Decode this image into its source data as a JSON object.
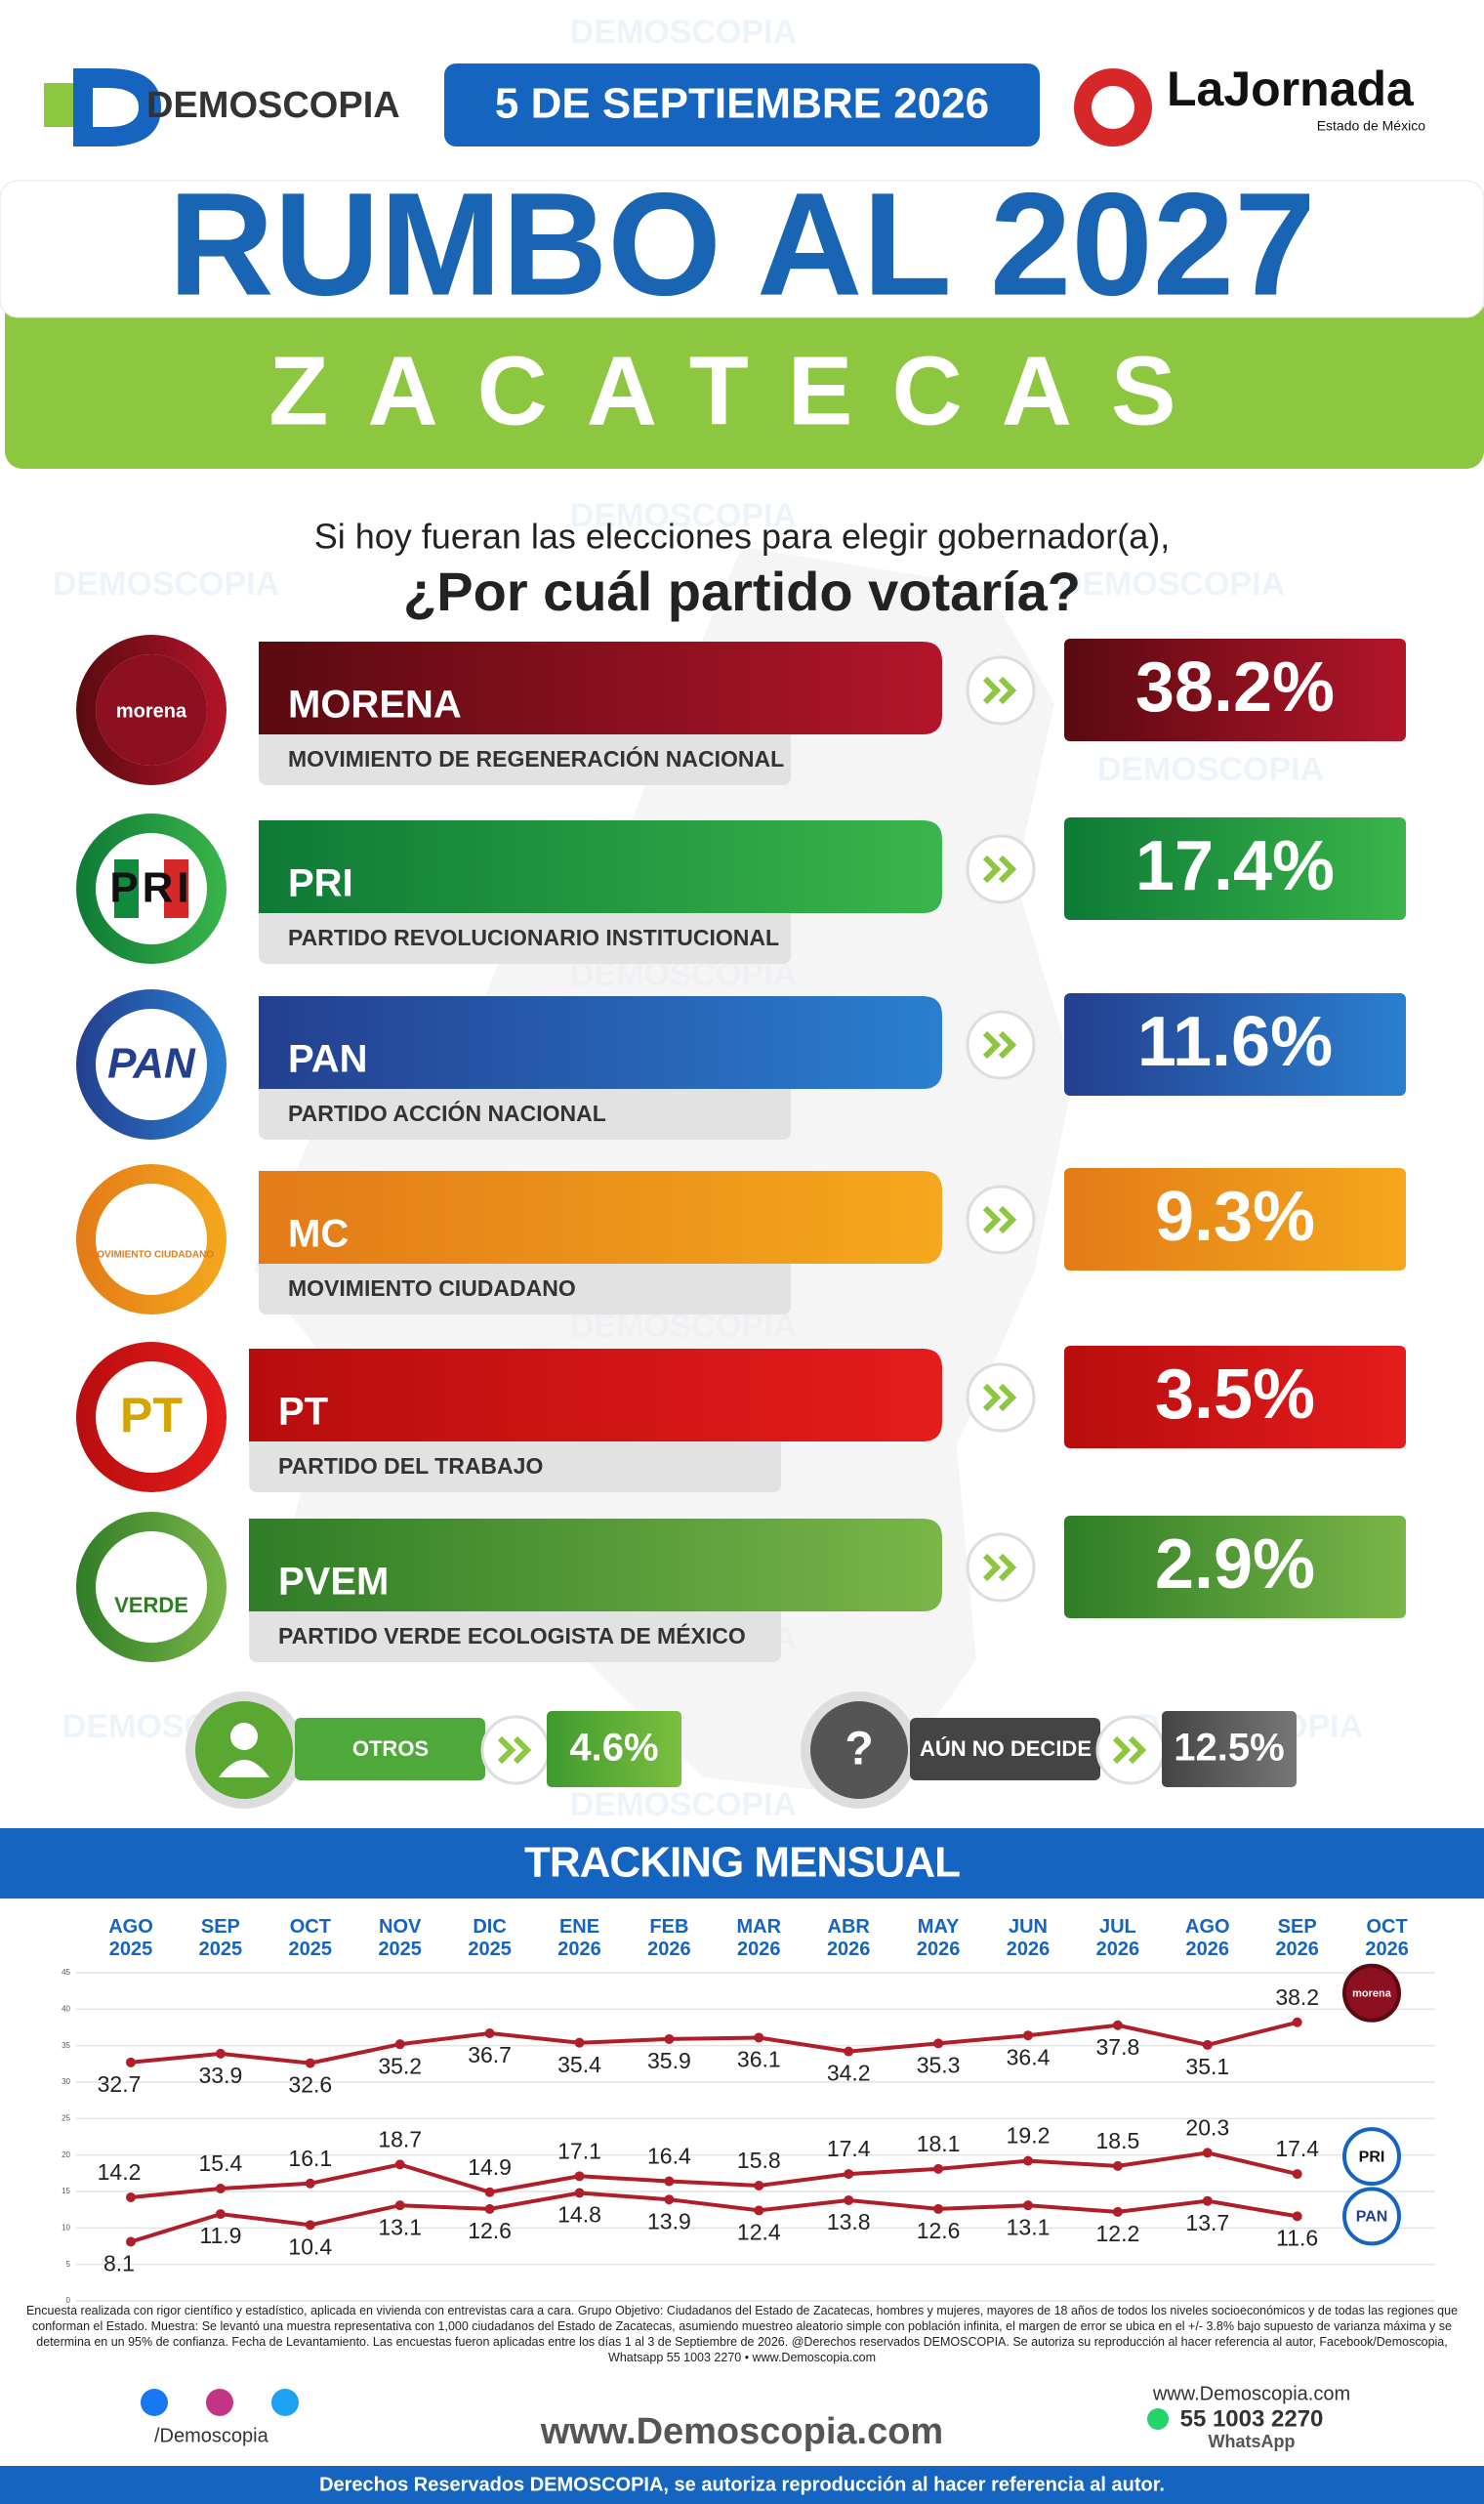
{
  "header": {
    "brand": "DEMOSCOPIA",
    "date": "5 DE SEPTIEMBRE 2026",
    "partner": "LaJornada",
    "partner_sub": "Estado de México"
  },
  "title": "RUMBO AL 2027",
  "subtitle": "ZACATECAS",
  "question": {
    "line1": "Si hoy fueran las elecciones para elegir gobernador(a),",
    "line2": "¿Por cuál partido votaría?"
  },
  "parties": [
    {
      "name": "MORENA",
      "full": "MOVIMIENTO DE REGENERACIÓN NACIONAL",
      "percent": "38.2%",
      "logo": "morena"
    },
    {
      "name": "PRI",
      "full": "PARTIDO REVOLUCIONARIO INSTITUCIONAL",
      "percent": "17.4%",
      "logo": "PRI"
    },
    {
      "name": "PAN",
      "full": "PARTIDO ACCIÓN NACIONAL",
      "percent": "11.6%",
      "logo": "PAN"
    },
    {
      "name": "MC",
      "full": "MOVIMIENTO CIUDADANO",
      "percent": "9.3%",
      "logo": "MOVIMIENTO CIUDADANO"
    },
    {
      "name": "PT",
      "full": "PARTIDO DEL TRABAJO",
      "percent": "3.5%",
      "logo": "PT"
    },
    {
      "name": "PVEM",
      "full": "PARTIDO VERDE ECOLOGISTA DE MÉXICO",
      "percent": "2.9%",
      "logo": "VERDE"
    }
  ],
  "others": [
    {
      "label": "OTROS",
      "percent": "4.6%"
    },
    {
      "label": "AÚN NO DECIDE",
      "percent": "12.5%",
      "icon": "?"
    }
  ],
  "chart_data": {
    "type": "line",
    "title": "TRACKING MENSUAL",
    "categories": [
      "AGO 2025",
      "SEP 2025",
      "OCT 2025",
      "NOV 2025",
      "DIC 2025",
      "ENE 2026",
      "FEB 2026",
      "MAR 2026",
      "ABR 2026",
      "MAY 2026",
      "JUN 2026",
      "JUL 2026",
      "AGO 2026",
      "SEP 2026",
      "OCT 2026"
    ],
    "series": [
      {
        "name": "morena",
        "color": "#b01e2a",
        "values": [
          32.7,
          33.9,
          32.6,
          35.2,
          36.7,
          35.4,
          35.9,
          36.1,
          34.2,
          35.3,
          36.4,
          37.8,
          35.1,
          38.2,
          null
        ]
      },
      {
        "name": "PRI",
        "color": "#b01e2a",
        "values": [
          14.2,
          15.4,
          16.1,
          18.7,
          14.9,
          17.1,
          16.4,
          15.8,
          17.4,
          18.1,
          19.2,
          18.5,
          20.3,
          17.4,
          null
        ]
      },
      {
        "name": "PAN",
        "color": "#b01e2a",
        "values": [
          8.1,
          11.9,
          10.4,
          13.1,
          12.6,
          14.8,
          13.9,
          12.4,
          13.8,
          12.6,
          13.1,
          12.2,
          13.7,
          11.6,
          null
        ]
      }
    ],
    "ylim": [
      0,
      45
    ],
    "yticks": [
      0,
      5,
      10,
      15,
      20,
      25,
      30,
      35,
      40,
      45
    ],
    "grid": true
  },
  "footer": {
    "disclaimer": "Encuesta realizada con rigor científico y estadístico, aplicada en vivienda con entrevistas cara a cara. Grupo Objetivo: Ciudadanos del Estado de Zacatecas, hombres y mujeres, mayores de 18 años de todos los niveles socioeconómicos y de todas las regiones que conforman el Estado. Muestra: Se levantó una muestra representativa con 1,000 ciudadanos del Estado de Zacatecas, asumiendo muestreo aleatorio simple con población infinita, el margen de error se ubica en el +/- 3.8% bajo supuesto de varianza máxima y se determina en un 95% de confianza. Fecha de Levantamiento. Las encuestas fueron aplicadas entre los días 1 al 3 de Septiembre de 2026. @Derechos reservados DEMOSCOPIA. Se autoriza su reproducción al hacer referencia al autor, Facebook/Demoscopia, Whatsapp 55 1003 2270 • www.Demoscopia.com",
    "social": "/Demoscopia",
    "website": "www.Demoscopia.com",
    "phone": "55 1003 2270",
    "whatsapp": "WhatsApp",
    "rights": "Derechos Reservados DEMOSCOPIA, se autoriza reproducción al hacer referencia al autor."
  }
}
